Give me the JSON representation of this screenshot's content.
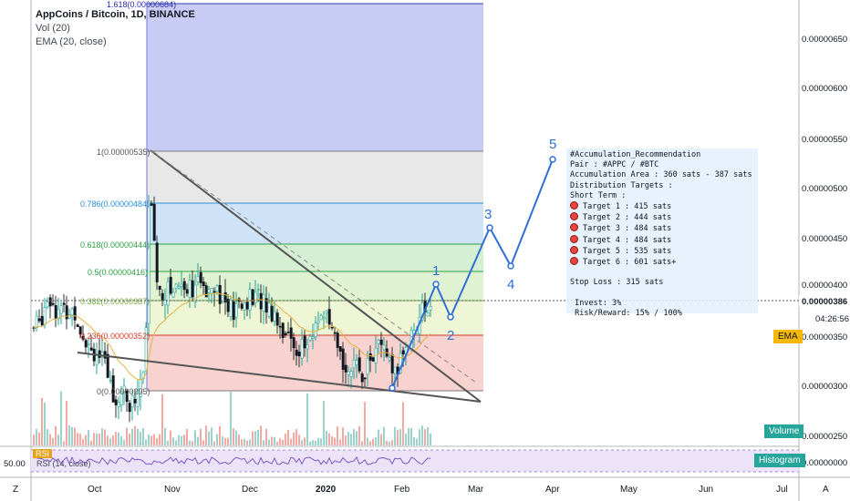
{
  "legend": {
    "symbol": "AppCoins / Bitcoin, 1D, BINANCE",
    "vol": "Vol (20)",
    "ema": "EMA (20, close)"
  },
  "fib_labels": [
    {
      "label": "1.618(0.00000684)",
      "color": "#2a2aaa"
    },
    {
      "label": "1(0.00000535)",
      "color": "#555555"
    },
    {
      "label": "0.786(0.00000484)",
      "color": "#2b8fd6"
    },
    {
      "label": "0.618(0.00000444)",
      "color": "#2ea043"
    },
    {
      "label": "0.5(0.00000416)",
      "color": "#2ea043"
    },
    {
      "label": "0.382(0.00000387)",
      "color": "#6fae3a"
    },
    {
      "label": "0.236(0.00000352)",
      "color": "#d33a2c"
    },
    {
      "label": "0(0.00000295)",
      "color": "#555555"
    }
  ],
  "price_axis": [
    "0.00000650",
    "0.00000600",
    "0.00000550",
    "0.00000500",
    "0.00000450",
    "0.00000400",
    "0.00000350",
    "0.00000300",
    "0.00000250",
    "0.00000000"
  ],
  "time_axis": [
    "Oct",
    "Nov",
    "Dec",
    "2020",
    "Feb",
    "Mar",
    "Apr",
    "May",
    "Jun",
    "Jul"
  ],
  "current_price": "0.00000386",
  "countdown": "04:26:56",
  "waves": [
    "1",
    "2",
    "3",
    "4",
    "5"
  ],
  "annotation": {
    "title": "#Accumulation_Recommendation",
    "pair": "Pair : #APPC / #BTC",
    "area": "Accumulation Area : 360 sats - 387 sats",
    "dist": "Distribution Targets :",
    "term": "Short Term :",
    "targets": [
      "Target 1 : 415 sats",
      "Target 2 : 444 sats",
      "Target 3 : 484 sats",
      "Target 4 : 484 sats",
      "Target 5 : 535 sats",
      "Target 6 : 601 sats+"
    ],
    "stop": "Stop Loss : 315 sats",
    "invest": " Invest: 3%",
    "rr": " Risk/Reward: 15% / 100%"
  },
  "badges": {
    "ema": "EMA",
    "volume": "Volume",
    "histogram": "Histogram",
    "rsi": "RSI"
  },
  "rsi": {
    "label": "RSI (14, close)",
    "value": "50.00"
  },
  "corner": {
    "z": "Z",
    "a": "A"
  },
  "colors": {
    "accent_blue": "#2f6fd6",
    "fib_red": "#f4c7c3",
    "fib_green": "#d8f0cf",
    "fib_blue": "#c9def7",
    "fib_gray": "#e6e6e6",
    "fib_indigo": "#c4c8f2",
    "ema_badge": "#f5b800",
    "volume_badge": "#26a69a"
  }
}
